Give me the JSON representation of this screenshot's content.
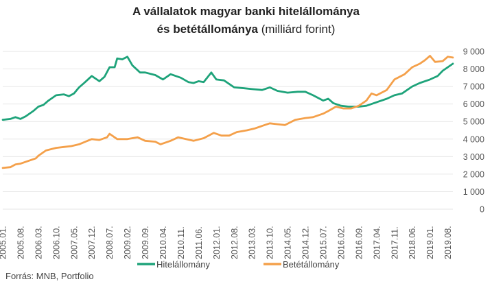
{
  "header": {
    "title_line1": "A vállalatok magyar banki hitelállománya",
    "title_line2_bold": "és betétállománya",
    "title_line2_unit": "(milliárd forint)"
  },
  "footer": {
    "source": "Forrás: MNB, Portfolio"
  },
  "chart_data": {
    "type": "line",
    "title": "A vállalatok magyar banki hitelállománya és betétállománya (milliárd forint)",
    "ylim": [
      0,
      9000
    ],
    "y_ticks": [
      0,
      1000,
      2000,
      3000,
      4000,
      5000,
      6000,
      7000,
      8000,
      9000
    ],
    "y_tick_labels": [
      "0",
      "1 000",
      "2 000",
      "3 000",
      "4 000",
      "5 000",
      "6 000",
      "7 000",
      "8 000",
      "9 000"
    ],
    "x_tick_labels": [
      "2005.01.",
      "2005.08.",
      "2006.03.",
      "2006.10.",
      "2007.05.",
      "2007.12.",
      "2008.07.",
      "2009.02.",
      "2009.09.",
      "2010.04.",
      "2010.11.",
      "2011.06.",
      "2012.01.",
      "2012.08.",
      "2013.03.",
      "2013.10.",
      "2014.05.",
      "2014.12.",
      "2015.07.",
      "2016.02.",
      "2016.09.",
      "2017.04.",
      "2017.11.",
      "2018.06.",
      "2019.01.",
      "2019.08."
    ],
    "x_start": "2005.01.",
    "x_end": "2019.10.",
    "grid": true,
    "legend_position": "bottom",
    "series": [
      {
        "name": "Hitelállomány",
        "color": "#1ea37a",
        "points": [
          [
            "2005.01.",
            5100
          ],
          [
            "2005.04.",
            5150
          ],
          [
            "2005.06.",
            5250
          ],
          [
            "2005.08.",
            5150
          ],
          [
            "2005.10.",
            5300
          ],
          [
            "2006.01.",
            5600
          ],
          [
            "2006.03.",
            5850
          ],
          [
            "2006.05.",
            5950
          ],
          [
            "2006.07.",
            6200
          ],
          [
            "2006.10.",
            6500
          ],
          [
            "2007.01.",
            6550
          ],
          [
            "2007.03.",
            6450
          ],
          [
            "2007.05.",
            6600
          ],
          [
            "2007.07.",
            6950
          ],
          [
            "2007.09.",
            7200
          ],
          [
            "2007.12.",
            7600
          ],
          [
            "2008.03.",
            7300
          ],
          [
            "2008.05.",
            7550
          ],
          [
            "2008.07.",
            8100
          ],
          [
            "2008.09.",
            8100
          ],
          [
            "2008.10.",
            8600
          ],
          [
            "2008.12.",
            8550
          ],
          [
            "2009.02.",
            8700
          ],
          [
            "2009.04.",
            8200
          ],
          [
            "2009.07.",
            7800
          ],
          [
            "2009.09.",
            7800
          ],
          [
            "2010.01.",
            7650
          ],
          [
            "2010.04.",
            7400
          ],
          [
            "2010.07.",
            7700
          ],
          [
            "2010.11.",
            7500
          ],
          [
            "2011.02.",
            7250
          ],
          [
            "2011.04.",
            7200
          ],
          [
            "2011.06.",
            7300
          ],
          [
            "2011.08.",
            7250
          ],
          [
            "2011.11.",
            7800
          ],
          [
            "2012.01.",
            7400
          ],
          [
            "2012.04.",
            7350
          ],
          [
            "2012.08.",
            6950
          ],
          [
            "2012.12.",
            6900
          ],
          [
            "2013.03.",
            6850
          ],
          [
            "2013.07.",
            6800
          ],
          [
            "2013.10.",
            6950
          ],
          [
            "2014.01.",
            6750
          ],
          [
            "2014.05.",
            6650
          ],
          [
            "2014.09.",
            6700
          ],
          [
            "2014.12.",
            6700
          ],
          [
            "2015.03.",
            6500
          ],
          [
            "2015.07.",
            6200
          ],
          [
            "2015.09.",
            6300
          ],
          [
            "2015.11.",
            6050
          ],
          [
            "2016.02.",
            5900
          ],
          [
            "2016.05.",
            5850
          ],
          [
            "2016.09.",
            5850
          ],
          [
            "2016.12.",
            5900
          ],
          [
            "2017.04.",
            6100
          ],
          [
            "2017.08.",
            6300
          ],
          [
            "2017.11.",
            6500
          ],
          [
            "2018.02.",
            6600
          ],
          [
            "2018.06.",
            7000
          ],
          [
            "2018.09.",
            7200
          ],
          [
            "2019.01.",
            7400
          ],
          [
            "2019.04.",
            7600
          ],
          [
            "2019.06.",
            7900
          ],
          [
            "2019.08.",
            8100
          ],
          [
            "2019.10.",
            8300
          ]
        ]
      },
      {
        "name": "Betétállomány",
        "color": "#f4a04a",
        "points": [
          [
            "2005.01.",
            2350
          ],
          [
            "2005.04.",
            2400
          ],
          [
            "2005.06.",
            2550
          ],
          [
            "2005.08.",
            2600
          ],
          [
            "2005.11.",
            2750
          ],
          [
            "2006.02.",
            2900
          ],
          [
            "2006.03.",
            3050
          ],
          [
            "2006.06.",
            3350
          ],
          [
            "2006.10.",
            3500
          ],
          [
            "2007.01.",
            3550
          ],
          [
            "2007.04.",
            3600
          ],
          [
            "2007.07.",
            3700
          ],
          [
            "2007.12.",
            4000
          ],
          [
            "2008.03.",
            3950
          ],
          [
            "2008.06.",
            4100
          ],
          [
            "2008.07.",
            4300
          ],
          [
            "2008.10.",
            4000
          ],
          [
            "2009.02.",
            4000
          ],
          [
            "2009.06.",
            4100
          ],
          [
            "2009.09.",
            3900
          ],
          [
            "2010.01.",
            3850
          ],
          [
            "2010.03.",
            3700
          ],
          [
            "2010.07.",
            3900
          ],
          [
            "2010.10.",
            4100
          ],
          [
            "2011.01.",
            4000
          ],
          [
            "2011.04.",
            3900
          ],
          [
            "2011.08.",
            4050
          ],
          [
            "2011.12.",
            4350
          ],
          [
            "2012.03.",
            4200
          ],
          [
            "2012.06.",
            4200
          ],
          [
            "2012.09.",
            4400
          ],
          [
            "2013.01.",
            4500
          ],
          [
            "2013.04.",
            4600
          ],
          [
            "2013.07.",
            4750
          ],
          [
            "2013.10.",
            4900
          ],
          [
            "2014.01.",
            4850
          ],
          [
            "2014.04.",
            4800
          ],
          [
            "2014.08.",
            5100
          ],
          [
            "2014.12.",
            5200
          ],
          [
            "2015.03.",
            5250
          ],
          [
            "2015.07.",
            5450
          ],
          [
            "2015.09.",
            5600
          ],
          [
            "2015.12.",
            5850
          ],
          [
            "2016.03.",
            5750
          ],
          [
            "2016.06.",
            5750
          ],
          [
            "2016.09.",
            5900
          ],
          [
            "2016.12.",
            6200
          ],
          [
            "2017.02.",
            6600
          ],
          [
            "2017.04.",
            6500
          ],
          [
            "2017.08.",
            6800
          ],
          [
            "2017.11.",
            7400
          ],
          [
            "2018.03.",
            7700
          ],
          [
            "2018.06.",
            8100
          ],
          [
            "2018.09.",
            8300
          ],
          [
            "2018.11.",
            8500
          ],
          [
            "2019.01.",
            8750
          ],
          [
            "2019.03.",
            8400
          ],
          [
            "2019.06.",
            8450
          ],
          [
            "2019.08.",
            8700
          ],
          [
            "2019.10.",
            8650
          ]
        ]
      }
    ]
  }
}
